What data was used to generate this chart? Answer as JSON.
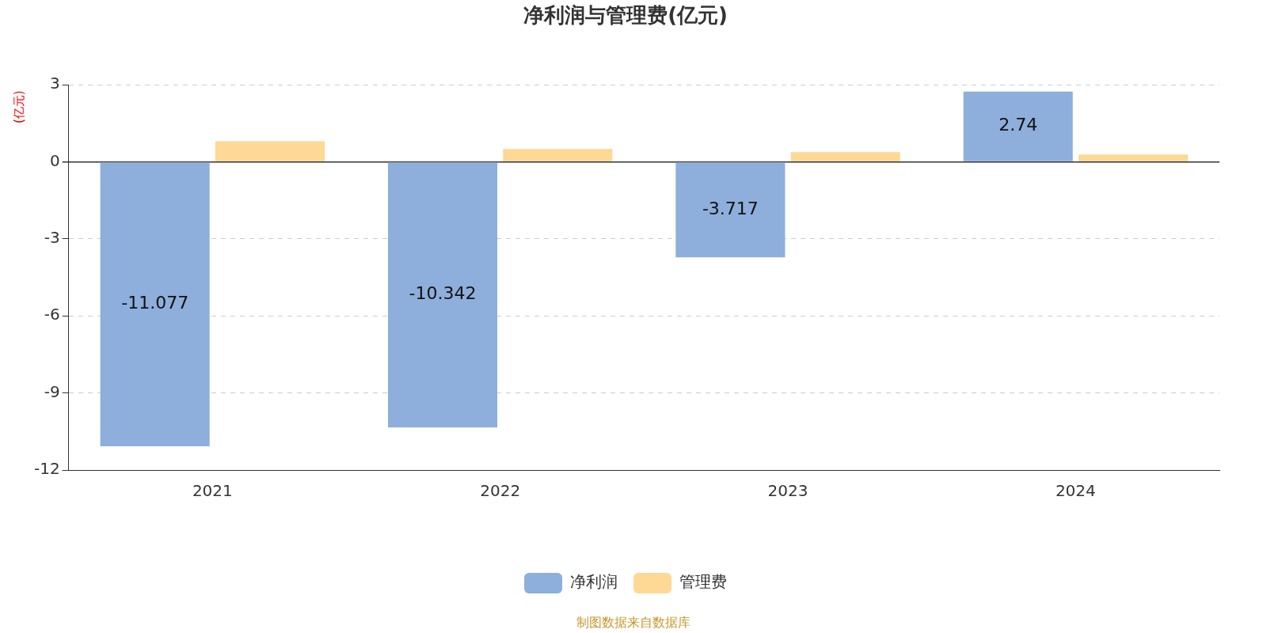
{
  "chart_data": {
    "type": "bar",
    "title": "净利润与管理费(亿元)",
    "ylabel": "(亿元)",
    "categories": [
      "2021",
      "2022",
      "2023",
      "2024"
    ],
    "series": [
      {
        "name": "净利润",
        "color": "#8eaedb",
        "values": [
          -11.077,
          -10.342,
          -3.717,
          2.74
        ],
        "value_labels": [
          "-11.077",
          "-10.342",
          "-3.717",
          "2.74"
        ]
      },
      {
        "name": "管理费",
        "color": "#fed995",
        "values": [
          0.8,
          0.5,
          0.38,
          0.29
        ]
      }
    ],
    "ylim": [
      -12,
      3
    ],
    "yticks": [
      -12,
      -9,
      -6,
      -3,
      0,
      3
    ],
    "grid": "y",
    "legend": "bottom",
    "annotations": [
      "制图数据来自数据库"
    ]
  }
}
